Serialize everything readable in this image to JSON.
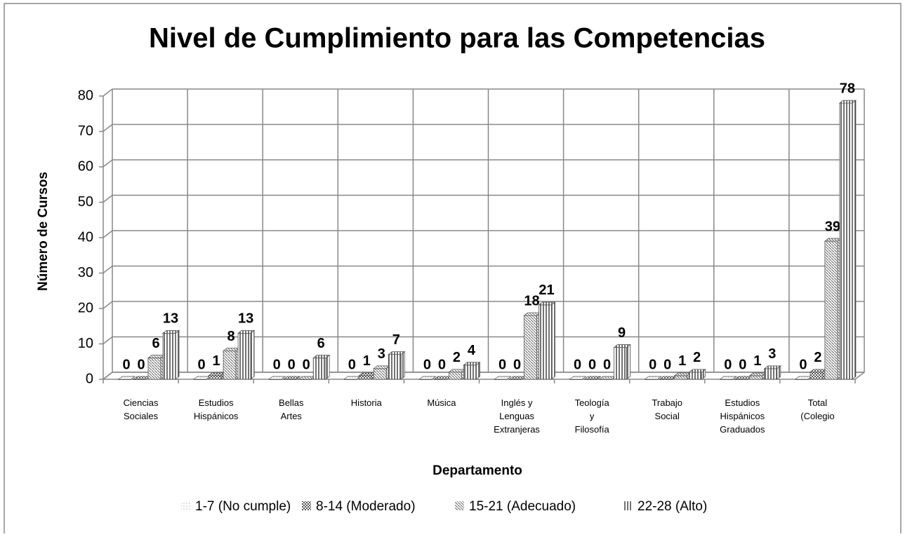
{
  "chart_data": {
    "type": "bar3d",
    "title": "Nivel de Cumplimiento para las Competencias",
    "y_label": "Número de Cursos",
    "x_label": "Departamento",
    "categories": [
      "Ciencias Sociales",
      "Estudios Hispánicos",
      "Bellas Artes",
      "Historia",
      "Música",
      "Inglés y Lenguas Extranjeras",
      "Teología y Filosofía",
      "Trabajo Social",
      "Estudios Hispánicos Graduados",
      "Total (Colegio"
    ],
    "series": [
      {
        "name": "1-7 (No cumple)",
        "color": "#bbbbbb",
        "pattern": "dots",
        "values": [
          0,
          0,
          0,
          0,
          0,
          0,
          0,
          0,
          0,
          0
        ]
      },
      {
        "name": "8-14 (Moderado)",
        "color": "#555555",
        "pattern": "checker",
        "values": [
          0,
          1,
          0,
          1,
          0,
          0,
          0,
          0,
          0,
          2
        ]
      },
      {
        "name": "15-21 (Adecuado)",
        "color": "#777777",
        "pattern": "diagonal",
        "values": [
          6,
          8,
          0,
          3,
          2,
          18,
          0,
          1,
          1,
          39
        ]
      },
      {
        "name": "22-28 (Alto)",
        "color": "#444444",
        "pattern": "vertical",
        "values": [
          13,
          13,
          6,
          7,
          4,
          21,
          9,
          2,
          3,
          78
        ]
      }
    ],
    "ylim": [
      0,
      80
    ],
    "yticks": [
      0,
      10,
      20,
      30,
      40,
      50,
      60,
      70,
      80
    ],
    "grid": true
  }
}
